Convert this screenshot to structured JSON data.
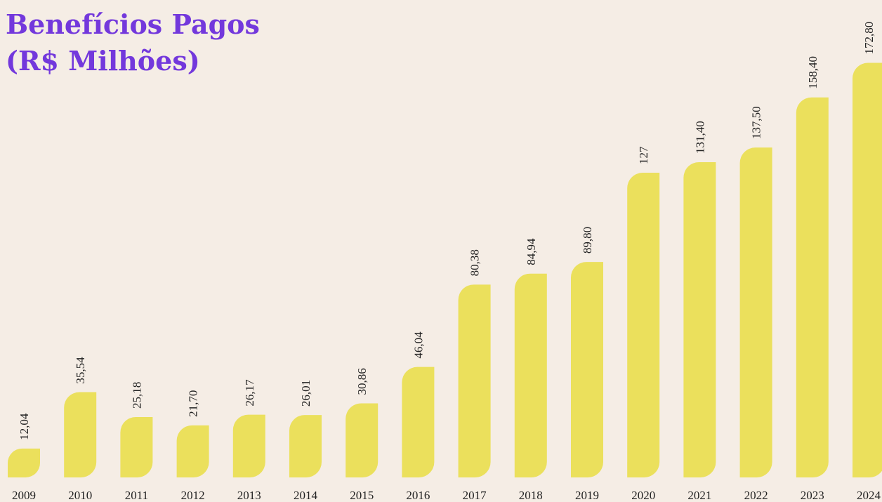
{
  "chart_data": {
    "type": "bar",
    "title": [
      "Benefícios Pagos",
      "(R$ Milhões)"
    ],
    "categories": [
      "2009",
      "2010",
      "2011",
      "2012",
      "2013",
      "2014",
      "2015",
      "2016",
      "2017",
      "2018",
      "2019",
      "2020",
      "2021",
      "2022",
      "2023",
      "2024"
    ],
    "values": [
      12.04,
      35.54,
      25.18,
      21.7,
      26.17,
      26.01,
      30.86,
      46.04,
      80.38,
      84.94,
      89.8,
      127,
      131.4,
      137.5,
      158.4,
      172.8
    ],
    "value_labels": [
      "12,04",
      "35,54",
      "25,18",
      "21,70",
      "26,17",
      "26,01",
      "30,86",
      "46,04",
      "80,38",
      "84,94",
      "89,80",
      "127",
      "131,40",
      "137,50",
      "158,40",
      "172,80"
    ],
    "color": "#ebe05c",
    "ylim": [
      0,
      175
    ]
  }
}
